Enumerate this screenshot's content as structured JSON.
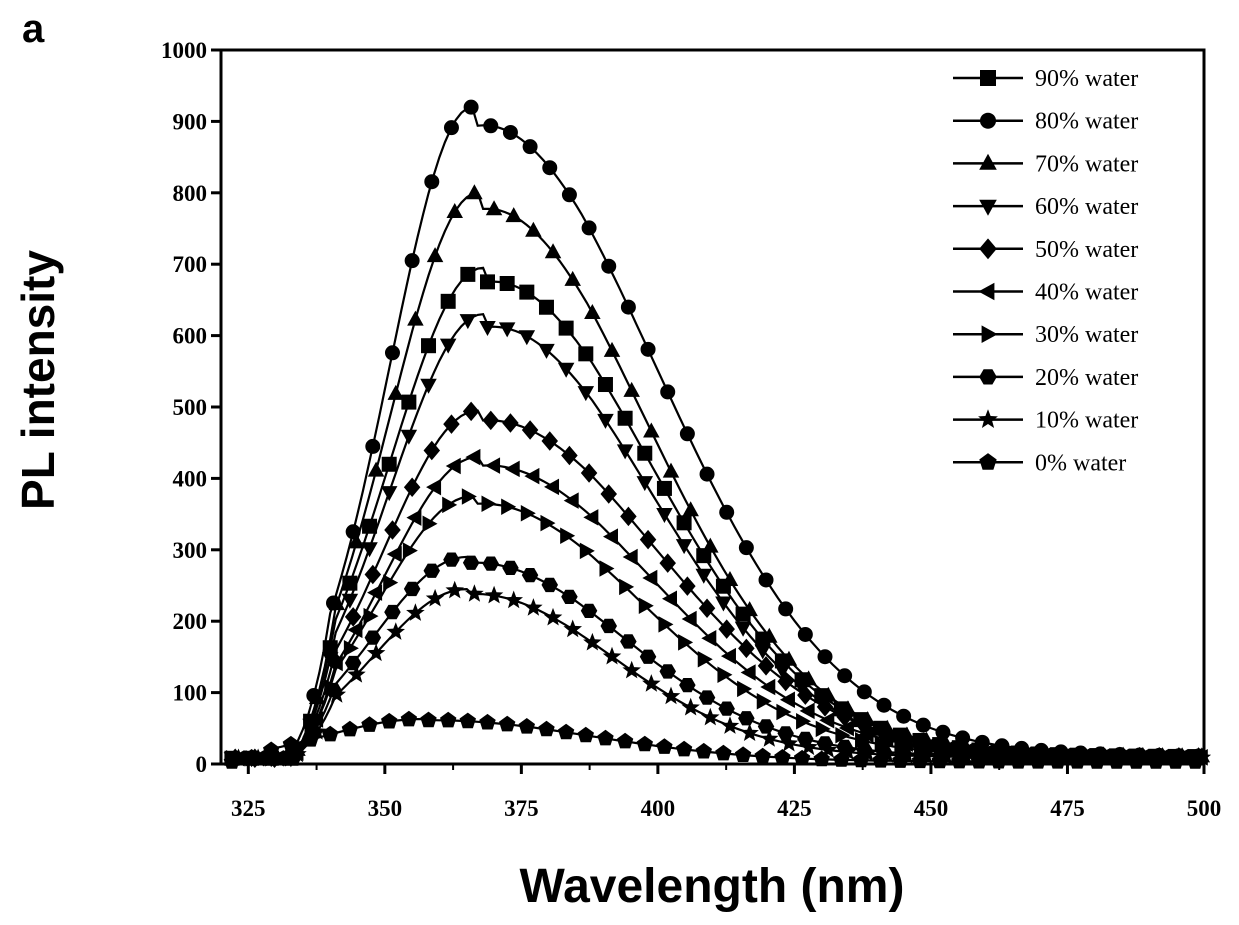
{
  "chart_data": {
    "type": "line",
    "panel_label": "a",
    "title": "",
    "xlabel": "Wavelength (nm)",
    "ylabel": "PL intensity",
    "xlim": [
      320,
      500
    ],
    "ylim": [
      0,
      1000
    ],
    "xticks": [
      325,
      350,
      375,
      400,
      425,
      450,
      475,
      500
    ],
    "yticks": [
      0,
      100,
      200,
      300,
      400,
      500,
      600,
      700,
      800,
      900,
      1000
    ],
    "legend_position": "top-right",
    "grid": false,
    "series": [
      {
        "name": "90% water",
        "marker": "square",
        "peak_x": 368,
        "peak": 695,
        "w_left": 17,
        "w_right": 30,
        "base": 8,
        "onset": 333
      },
      {
        "name": "80% water",
        "marker": "circle",
        "peak_x": 366,
        "peak": 920,
        "w_left": 15,
        "w_right": 33,
        "base": 8,
        "onset": 332
      },
      {
        "name": "70% water",
        "marker": "triangle-up",
        "peak_x": 367,
        "peak": 800,
        "w_left": 16,
        "w_right": 30,
        "base": 8,
        "onset": 333
      },
      {
        "name": "60% water",
        "marker": "triangle-down",
        "peak_x": 368,
        "peak": 630,
        "w_left": 17,
        "w_right": 30,
        "base": 8,
        "onset": 333
      },
      {
        "name": "50% water",
        "marker": "diamond",
        "peak_x": 367,
        "peak": 495,
        "w_left": 17,
        "w_right": 32,
        "base": 8,
        "onset": 333
      },
      {
        "name": "40% water",
        "marker": "triangle-left",
        "peak_x": 367,
        "peak": 430,
        "w_left": 17,
        "w_right": 31,
        "base": 8,
        "onset": 333
      },
      {
        "name": "30% water",
        "marker": "triangle-right",
        "peak_x": 366,
        "peak": 375,
        "w_left": 17,
        "w_right": 30,
        "base": 8,
        "onset": 333
      },
      {
        "name": "20% water",
        "marker": "hexagon",
        "peak_x": 365,
        "peak": 290,
        "w_left": 17,
        "w_right": 28,
        "base": 8,
        "onset": 333
      },
      {
        "name": "10% water",
        "marker": "star",
        "peak_x": 365,
        "peak": 245,
        "w_left": 17,
        "w_right": 26,
        "base": 8,
        "onset": 333
      },
      {
        "name": "0% water",
        "marker": "pentagon",
        "peak_x": 357,
        "peak": 63,
        "w_left": 18,
        "w_right": 30,
        "base": 3,
        "onset": 322
      }
    ]
  }
}
